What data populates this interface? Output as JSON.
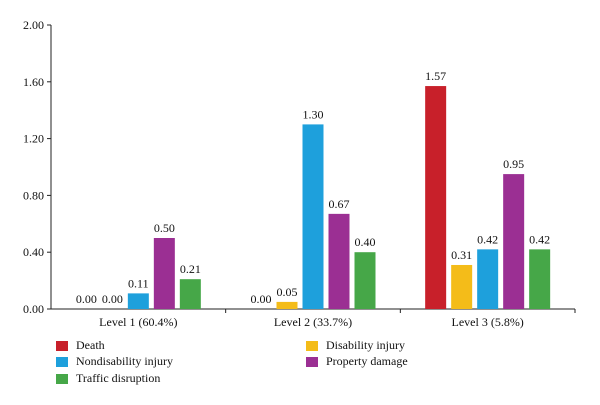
{
  "chart_data": {
    "type": "bar",
    "categories": [
      "Level 1 (60.4%)",
      "Level 2 (33.7%)",
      "Level 3 (5.8%)"
    ],
    "series": [
      {
        "name": "Death",
        "color": "#c8202a",
        "values": [
          0.0,
          0.0,
          1.57
        ],
        "labels": [
          "0.00",
          "0.00",
          "1.57"
        ]
      },
      {
        "name": "Disability injury",
        "color": "#f4bc19",
        "values": [
          0.0,
          0.05,
          0.31
        ],
        "labels": [
          "0.00",
          "0.05",
          "0.31"
        ]
      },
      {
        "name": "Nondisability injury",
        "color": "#1ea0dc",
        "values": [
          0.11,
          1.3,
          0.42
        ],
        "labels": [
          "0.11",
          "1.30",
          "0.42"
        ]
      },
      {
        "name": "Property damage",
        "color": "#9b2f93",
        "values": [
          0.5,
          0.67,
          0.95
        ],
        "labels": [
          "0.50",
          "0.67",
          "0.95"
        ]
      },
      {
        "name": "Traffic disruption",
        "color": "#46a748",
        "values": [
          0.21,
          0.4,
          0.42
        ],
        "labels": [
          "0.21",
          "0.40",
          "0.42"
        ]
      }
    ],
    "yticks": [
      "0.00",
      "0.40",
      "0.80",
      "1.20",
      "1.60",
      "2.00"
    ],
    "ylim": [
      0,
      2.0
    ],
    "grid": false,
    "legend_position": "bottom"
  }
}
